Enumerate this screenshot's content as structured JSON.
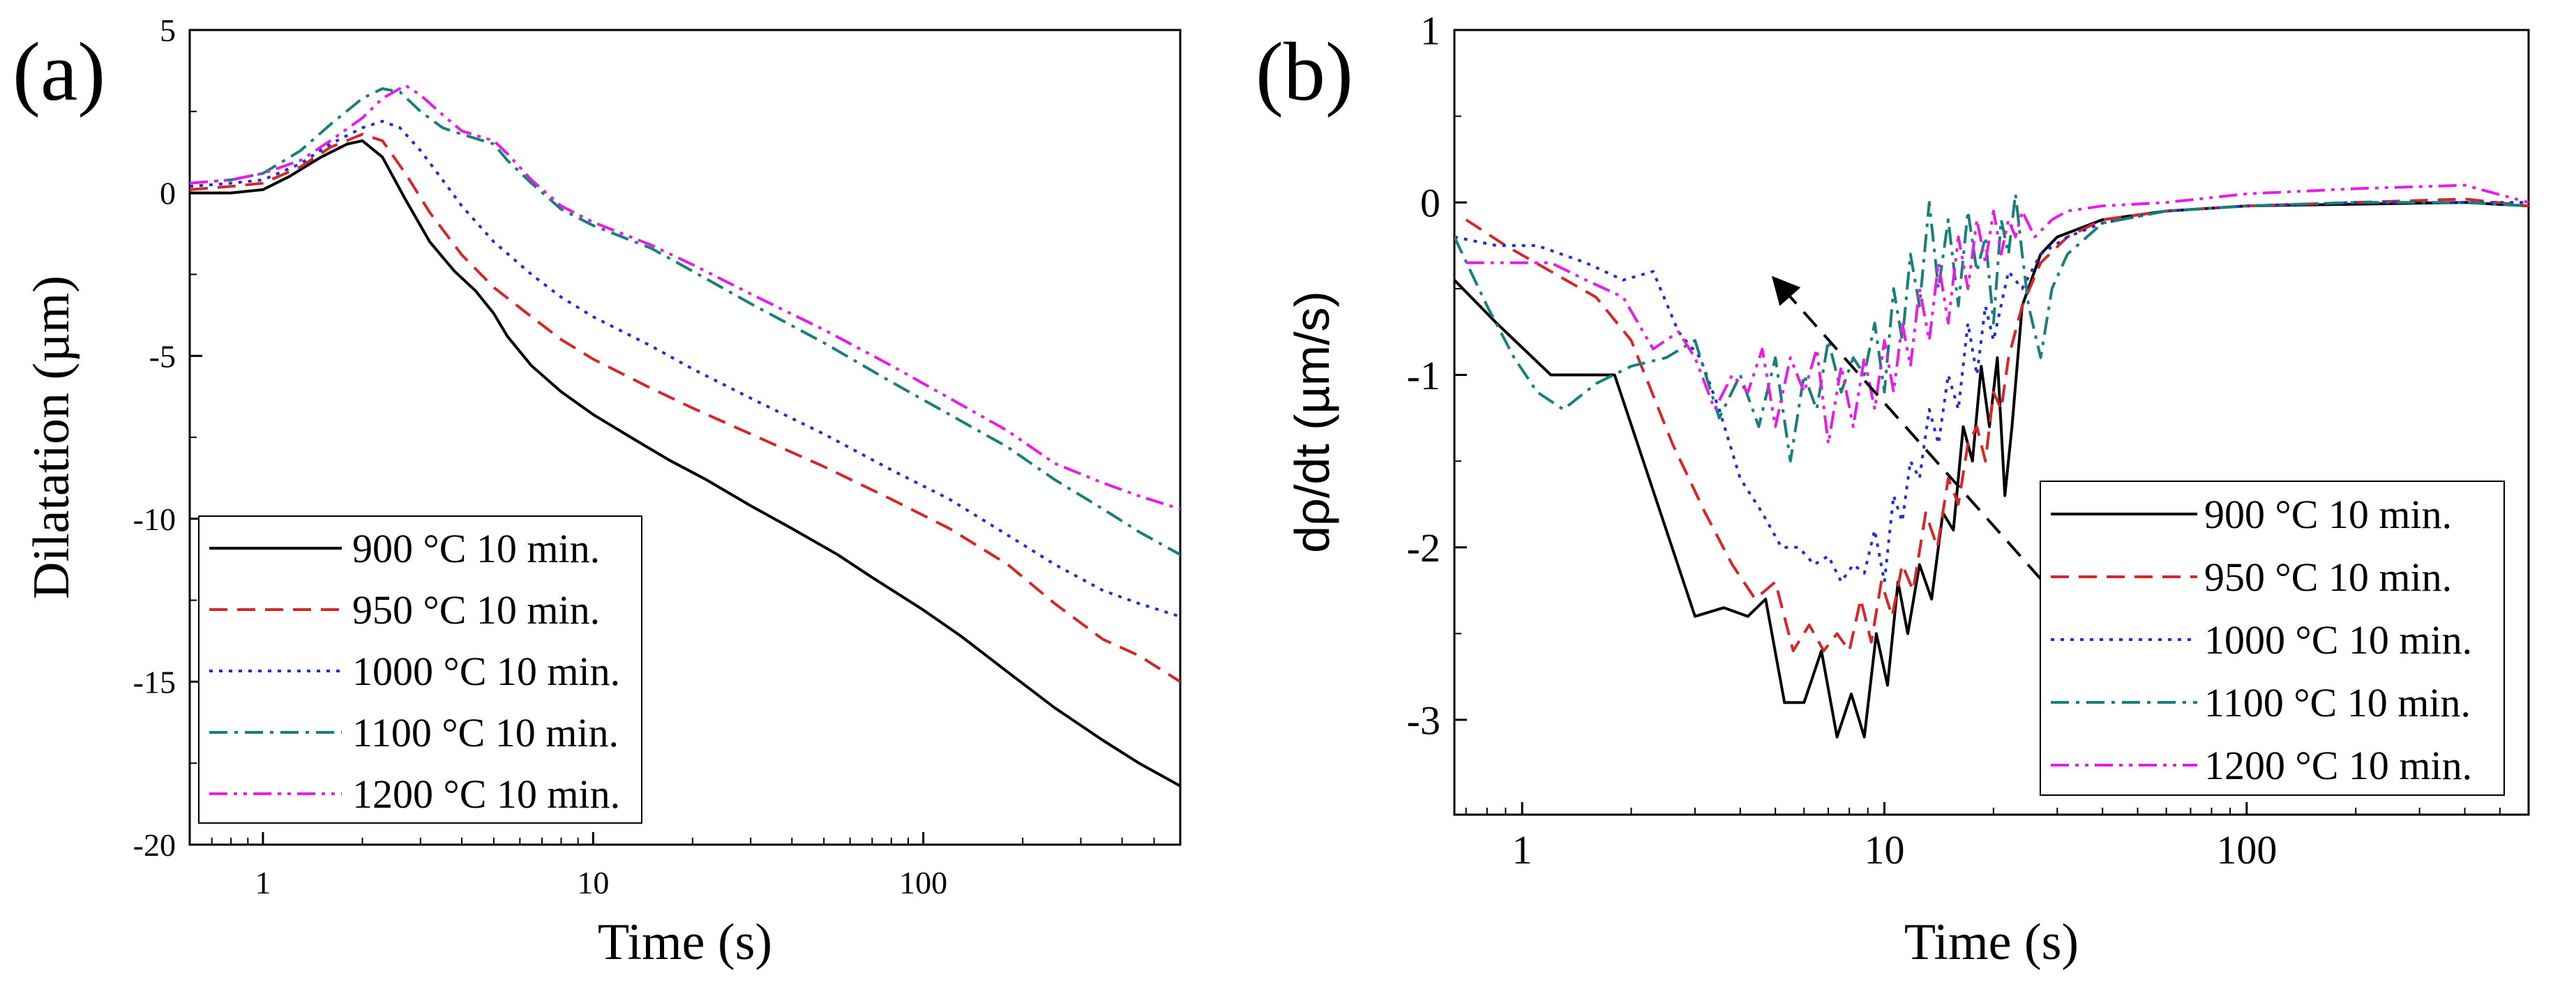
{
  "chart_data": [
    {
      "panel_label": "(a)",
      "type": "line",
      "xlabel": "Time (s)",
      "ylabel": "Dilatation (µm)",
      "xscale": "log",
      "xlim": [
        0.6,
        600
      ],
      "ylim": [
        -20,
        5
      ],
      "xticks": [
        1,
        10,
        100
      ],
      "xtick_labels": [
        "1",
        "10",
        "100"
      ],
      "yticks": [
        -20,
        -15,
        -10,
        -5,
        0,
        5
      ],
      "ytick_labels": [
        "-20",
        "-15",
        "-10",
        "-5",
        "0",
        "5"
      ],
      "legend_position": "bottom-left",
      "grid": false,
      "series": [
        {
          "name": "900 °C 10 min.",
          "color": "#000000",
          "dash": "solid",
          "x": [
            0.6,
            0.8,
            1,
            1.2,
            1.5,
            1.8,
            2,
            2.3,
            2.7,
            3.2,
            3.8,
            4.4,
            5,
            5.5,
            6.5,
            8,
            10,
            13,
            17,
            22,
            30,
            40,
            55,
            70,
            100,
            130,
            180,
            250,
            350,
            450,
            600
          ],
          "y": [
            0,
            0,
            0.1,
            0.5,
            1.1,
            1.5,
            1.6,
            1.1,
            -0.2,
            -1.5,
            -2.4,
            -3,
            -3.7,
            -4.4,
            -5.3,
            -6.1,
            -6.8,
            -7.5,
            -8.2,
            -8.8,
            -9.6,
            -10.3,
            -11.1,
            -11.8,
            -12.8,
            -13.6,
            -14.7,
            -15.8,
            -16.8,
            -17.5,
            -18.2
          ]
        },
        {
          "name": "950 °C 10 min.",
          "color": "#d62728",
          "dash": "dashed",
          "x": [
            0.6,
            0.8,
            1,
            1.3,
            1.6,
            2,
            2.3,
            2.7,
            3.2,
            4,
            5,
            6.5,
            8,
            10,
            15,
            20,
            30,
            50,
            80,
            120,
            180,
            250,
            350,
            450,
            600
          ],
          "y": [
            0.1,
            0.2,
            0.3,
            0.8,
            1.4,
            1.8,
            1.6,
            0.6,
            -0.6,
            -1.9,
            -2.9,
            -3.8,
            -4.5,
            -5.1,
            -6,
            -6.6,
            -7.4,
            -8.4,
            -9.4,
            -10.3,
            -11.4,
            -12.6,
            -13.7,
            -14.2,
            -15
          ]
        },
        {
          "name": "1000 °C 10 min.",
          "color": "#1f2fd6",
          "dash": "dotted",
          "x": [
            0.6,
            0.8,
            1,
            1.3,
            1.6,
            2,
            2.3,
            2.6,
            3,
            3.5,
            4,
            5,
            6.5,
            8,
            10,
            15,
            20,
            30,
            50,
            80,
            120,
            180,
            250,
            350,
            450,
            600
          ],
          "y": [
            0.2,
            0.3,
            0.4,
            0.9,
            1.5,
            2,
            2.2,
            2,
            1.3,
            0.4,
            -0.4,
            -1.5,
            -2.5,
            -3.2,
            -3.8,
            -4.7,
            -5.4,
            -6.3,
            -7.4,
            -8.5,
            -9.4,
            -10.5,
            -11.4,
            -12.2,
            -12.6,
            -13
          ]
        },
        {
          "name": "1100 °C 10 min.",
          "color": "#17807a",
          "dash": "dashdot",
          "x": [
            0.6,
            0.8,
            1,
            1.3,
            1.6,
            2,
            2.3,
            2.6,
            3,
            3.5,
            4,
            5,
            5.5,
            6.5,
            8,
            10,
            15,
            20,
            30,
            50,
            80,
            120,
            180,
            250,
            350,
            450,
            600
          ],
          "y": [
            0.3,
            0.4,
            0.6,
            1.3,
            2.1,
            2.9,
            3.2,
            3.1,
            2.5,
            2,
            1.8,
            1.5,
            1,
            0.3,
            -0.5,
            -1,
            -1.7,
            -2.4,
            -3.4,
            -4.6,
            -5.8,
            -6.8,
            -7.8,
            -8.8,
            -9.7,
            -10.4,
            -11.1
          ]
        },
        {
          "name": "1200 °C 10 min.",
          "color": "#e81ce8",
          "dash": "dashdotdot",
          "x": [
            0.6,
            0.8,
            1,
            1.3,
            1.6,
            2,
            2.3,
            2.7,
            3,
            3.5,
            4,
            5,
            5.5,
            6.5,
            8,
            10,
            15,
            20,
            30,
            50,
            80,
            120,
            180,
            250,
            350,
            450,
            600
          ],
          "y": [
            0.3,
            0.4,
            0.6,
            1,
            1.6,
            2.3,
            2.9,
            3.3,
            3,
            2.4,
            1.9,
            1.6,
            1.2,
            0.4,
            -0.4,
            -0.9,
            -1.6,
            -2.2,
            -3.1,
            -4.2,
            -5.3,
            -6.3,
            -7.3,
            -8.3,
            -8.9,
            -9.3,
            -9.7
          ]
        }
      ]
    },
    {
      "panel_label": "(b)",
      "type": "line",
      "xlabel": "Time (s)",
      "ylabel": "dρ/dt (µm/s)",
      "xscale": "log",
      "xlim": [
        0.65,
        600
      ],
      "ylim": [
        -3.55,
        1
      ],
      "xticks": [
        1,
        10,
        100
      ],
      "xtick_labels": [
        "1",
        "10",
        "100"
      ],
      "yticks": [
        -3,
        -2,
        -1,
        0,
        1
      ],
      "ytick_labels": [
        "-3",
        "-2",
        "-1",
        "0",
        "1"
      ],
      "legend_position": "bottom-right",
      "grid": false,
      "annotation": "dashed arrow from lower-right (near 35 s, -2.45) to upper-left (near 5 s, -0.45)",
      "series": [
        {
          "name": "900 °C 10 min.",
          "color": "#000000",
          "dash": "solid",
          "x": [
            0.65,
            0.85,
            1.2,
            1.8,
            3,
            3.6,
            4.2,
            4.7,
            5.3,
            6,
            6.7,
            7.4,
            8.1,
            8.8,
            9.5,
            10.2,
            10.9,
            11.6,
            12.5,
            13.5,
            14.5,
            15.5,
            16.5,
            17.5,
            18.5,
            19.5,
            20.5,
            21.5,
            22.5,
            24,
            27,
            30,
            40,
            60,
            100,
            200,
            400,
            600
          ],
          "y": [
            -0.45,
            -0.7,
            -1,
            -1,
            -2.4,
            -2.35,
            -2.4,
            -2.3,
            -2.9,
            -2.9,
            -2.6,
            -3.1,
            -2.85,
            -3.1,
            -2.5,
            -2.8,
            -2.2,
            -2.5,
            -2.1,
            -2.3,
            -1.8,
            -1.9,
            -1.3,
            -1.5,
            -0.95,
            -1.3,
            -0.9,
            -1.7,
            -1.3,
            -0.6,
            -0.3,
            -0.2,
            -0.1,
            -0.05,
            -0.02,
            -0.01,
            0,
            -0.02
          ]
        },
        {
          "name": "950 °C 10 min.",
          "color": "#d62728",
          "dash": "dashed",
          "x": [
            0.7,
            0.9,
            1.2,
            1.6,
            2,
            2.6,
            3.2,
            3.8,
            4.4,
            5,
            5.6,
            6.2,
            6.8,
            7.4,
            8,
            8.6,
            9.2,
            9.8,
            10.5,
            11.2,
            12,
            13,
            14,
            15,
            16,
            17,
            18,
            19,
            20,
            21,
            22,
            24,
            27,
            32,
            40,
            60,
            100,
            200,
            400,
            600
          ],
          "y": [
            -0.1,
            -0.25,
            -0.4,
            -0.55,
            -0.8,
            -1.4,
            -1.8,
            -2.1,
            -2.3,
            -2.2,
            -2.6,
            -2.45,
            -2.6,
            -2.5,
            -2.6,
            -2.3,
            -2.55,
            -2.2,
            -2.4,
            -2.1,
            -2.25,
            -1.8,
            -2,
            -1.6,
            -1.75,
            -1.4,
            -1.3,
            -1.5,
            -1.1,
            -1.2,
            -0.9,
            -0.6,
            -0.35,
            -0.2,
            -0.1,
            -0.05,
            -0.02,
            0,
            0.02,
            -0.02
          ]
        },
        {
          "name": "1000 °C 10 min.",
          "color": "#1f2fd6",
          "dash": "dotted",
          "x": [
            0.65,
            0.85,
            1.1,
            1.5,
            1.9,
            2.3,
            2.7,
            3.1,
            3.5,
            4,
            4.6,
            5.2,
            5.8,
            6.4,
            7,
            7.6,
            8.2,
            8.8,
            9.4,
            10,
            10.6,
            11.2,
            11.8,
            12.5,
            13.3,
            14.1,
            15,
            16,
            17,
            18,
            19,
            20,
            22,
            24,
            27,
            32,
            40,
            60,
            100,
            200,
            400,
            600
          ],
          "y": [
            -0.2,
            -0.25,
            -0.25,
            -0.35,
            -0.45,
            -0.4,
            -0.75,
            -0.9,
            -1.2,
            -1.6,
            -1.8,
            -2,
            -2,
            -2.1,
            -2.05,
            -2.2,
            -2.1,
            -2.15,
            -1.9,
            -2.2,
            -1.7,
            -1.85,
            -1.5,
            -1.6,
            -1.2,
            -1.4,
            -1,
            -1.2,
            -0.7,
            -1,
            -0.6,
            -0.8,
            -0.4,
            -0.5,
            -0.3,
            -0.2,
            -0.12,
            -0.05,
            -0.02,
            0,
            0,
            0
          ]
        },
        {
          "name": "1100 °C 10 min.",
          "color": "#17807a",
          "dash": "dashdot",
          "x": [
            0.65,
            0.8,
            0.95,
            1.1,
            1.3,
            1.6,
            2,
            2.5,
            3,
            3.5,
            4,
            4.5,
            5,
            5.5,
            6,
            6.5,
            7,
            7.6,
            8.2,
            8.8,
            9.4,
            10,
            10.6,
            11.2,
            11.8,
            12.5,
            13.3,
            14.1,
            15,
            16,
            17,
            18,
            19,
            20,
            21,
            22,
            23,
            24,
            25,
            27,
            29,
            32,
            40,
            60,
            100,
            200,
            400,
            600
          ],
          "y": [
            -0.2,
            -0.6,
            -0.9,
            -1.1,
            -1.2,
            -1.05,
            -0.95,
            -0.9,
            -0.8,
            -1.25,
            -1.0,
            -1.3,
            -0.9,
            -1.5,
            -1.0,
            -1.2,
            -0.8,
            -1.1,
            -0.9,
            -1.0,
            -0.7,
            -1.1,
            -0.5,
            -0.8,
            -0.3,
            -0.6,
            0,
            -0.5,
            -0.1,
            -0.6,
            -0.05,
            -0.4,
            -0.2,
            -0.7,
            -0.1,
            -0.3,
            0.05,
            -0.3,
            -0.6,
            -0.9,
            -0.5,
            -0.3,
            -0.12,
            -0.05,
            -0.02,
            0,
            0,
            -0.02
          ]
        },
        {
          "name": "1200 °C 10 min.",
          "color": "#e81ce8",
          "dash": "dashdotdot",
          "x": [
            0.7,
            0.9,
            1.2,
            1.5,
            1.9,
            2.3,
            2.7,
            3,
            3.4,
            3.8,
            4.2,
            4.6,
            5,
            5.5,
            6,
            6.5,
            7,
            7.6,
            8.2,
            8.8,
            9.4,
            10,
            10.6,
            11.2,
            11.8,
            12.5,
            13.3,
            14.1,
            15,
            16,
            17,
            18,
            19,
            20,
            21,
            22,
            23,
            24,
            26,
            29,
            32,
            40,
            60,
            100,
            200,
            400,
            600
          ],
          "y": [
            -0.35,
            -0.35,
            -0.35,
            -0.45,
            -0.55,
            -0.85,
            -0.75,
            -0.9,
            -1.2,
            -1.0,
            -1.1,
            -0.85,
            -1.3,
            -0.9,
            -1.1,
            -0.85,
            -1.4,
            -0.95,
            -1.3,
            -0.9,
            -1.2,
            -0.8,
            -1.1,
            -0.7,
            -0.95,
            -0.5,
            -0.8,
            -0.35,
            -0.7,
            -0.2,
            -0.5,
            -0.1,
            -0.35,
            -0.05,
            -0.3,
            -0.1,
            -0.2,
            -0.05,
            -0.2,
            -0.1,
            -0.05,
            -0.02,
            0,
            0.05,
            0.08,
            0.1,
            0
          ]
        }
      ]
    }
  ]
}
